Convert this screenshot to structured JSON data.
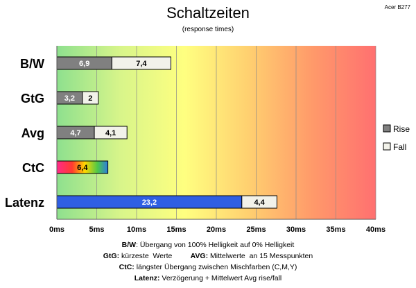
{
  "header": {
    "title": "Schaltzeiten",
    "subtitle": "(response times)",
    "brand": "Acer B277"
  },
  "chart_data": {
    "type": "bar",
    "orientation": "horizontal",
    "stacked": true,
    "categories": [
      "B/W",
      "GtG",
      "Avg",
      "CtC",
      "Latenz"
    ],
    "series": [
      {
        "name": "Rise",
        "values": [
          6.9,
          3.2,
          4.7,
          6.4,
          23.2
        ],
        "labels": [
          "6,9",
          "3,2",
          "4,7",
          "6,4",
          "23,2"
        ]
      },
      {
        "name": "Fall",
        "values": [
          7.4,
          2,
          4.1,
          0,
          4.4
        ],
        "labels": [
          "7,4",
          "2",
          "4,1",
          "",
          "4,4"
        ]
      }
    ],
    "xlim": [
      0,
      40
    ],
    "xticks": [
      0,
      5,
      10,
      15,
      20,
      25,
      30,
      35,
      40
    ],
    "xtick_labels": [
      "0ms",
      "5ms",
      "10ms",
      "15ms",
      "20ms",
      "25ms",
      "30ms",
      "35ms",
      "40ms"
    ],
    "grid": "vertical",
    "background": "gradient green-yellow-orange-red",
    "legend_position": "right",
    "legend": [
      "Rise",
      "Fall"
    ],
    "colors": {
      "rise": "#808080",
      "fall": "#f2f2ea",
      "ctc_rainbow": [
        "#ff2a8a",
        "#ff3b2f",
        "#ffd800",
        "#4cc84a",
        "#2e7de0"
      ],
      "latenz": "#2f5fe3",
      "gradient": [
        "#8ee08e",
        "#d8f58a",
        "#ffff80",
        "#ffd070",
        "#ff9a6a",
        "#ff7070"
      ]
    }
  },
  "notes": {
    "line1_key": "B/W",
    "line1_text": ":  Übergang von 100% Helligkeit auf 0% Helligkeit",
    "line2_key": "GtG:",
    "line2_text": " kürzeste  Werte         ",
    "line2_key2": "AVG:",
    "line2_text2": " Mittelwerte  an 15 Messpunkten",
    "line3_key": "CtC:",
    "line3_text": " längster Übergang  zwischen Mischfarben  (C,M,Y)",
    "line4_key": "Latenz:",
    "line4_text": " Verzögerung  + Mittelwert  Avg rise/fall"
  }
}
